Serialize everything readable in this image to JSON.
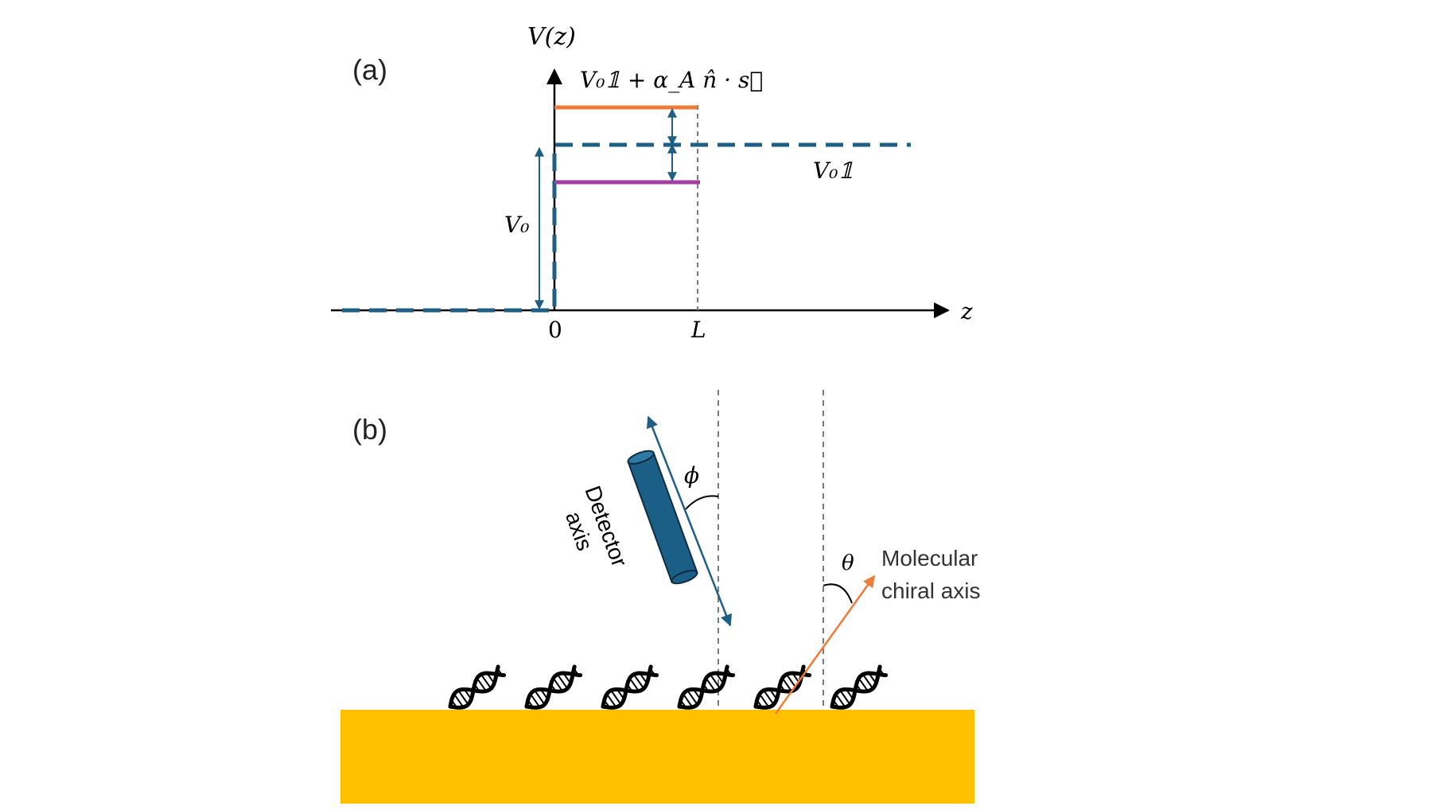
{
  "colors": {
    "axis": "#000000",
    "baseline_dashed": "#1f5f84",
    "upper_level": "#ee7b3a",
    "lower_level": "#a23fa0",
    "substrate": "#ffc000",
    "detector": "#1b5f86",
    "molecular_axis": "#ee7b3a",
    "guide_dashed": "#7a7a7a"
  },
  "panel_a": {
    "label": "(a)",
    "y_axis_label": "V(z)",
    "x_axis_label": "z",
    "tick_zero": "0",
    "tick_L": "L",
    "upper_level_label": "V₀𝟙 + α_A n̂ · s⃗",
    "baseline_label": "V₀𝟙",
    "barrier_height_label": "V₀"
  },
  "panel_b": {
    "label": "(b)",
    "detector_label_line1": "Detector",
    "detector_label_line2": "axis",
    "phi_label": "ϕ",
    "theta_label": "θ",
    "molecular_label_line1": "Molecular",
    "molecular_label_line2": "chiral axis",
    "molecule_count": 6,
    "molecule_icon": "dna-helix-icon"
  }
}
